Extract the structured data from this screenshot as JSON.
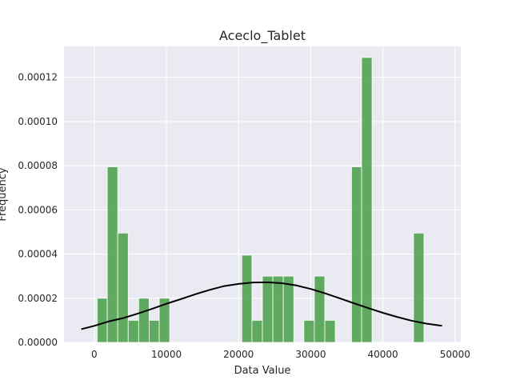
{
  "chart_data": {
    "type": "bar",
    "title": "Aceclo_Tablet",
    "xlabel": "Data Value",
    "ylabel": "Frequency",
    "xlim": [
      -4200,
      50800
    ],
    "ylim": [
      0,
      0.000134
    ],
    "xticks": [
      0,
      10000,
      20000,
      30000,
      40000,
      50000
    ],
    "yticks": [
      0,
      2e-05,
      4e-05,
      6e-05,
      8e-05,
      0.0001,
      0.00012
    ],
    "ytick_labels": [
      "0.00000",
      "0.00002",
      "0.00004",
      "0.00006",
      "0.00008",
      "0.00010",
      "0.00012"
    ],
    "grid": true,
    "bar_color": "#4c9f4c",
    "curve_color": "#000000",
    "background_color": "#eaeaf2",
    "bins": [
      {
        "x0": 400,
        "x1": 1800,
        "value": 2e-05
      },
      {
        "x0": 1800,
        "x1": 3250,
        "value": 7.95e-05
      },
      {
        "x0": 3250,
        "x1": 4700,
        "value": 4.95e-05
      },
      {
        "x0": 4700,
        "x1": 6150,
        "value": 1e-05
      },
      {
        "x0": 6150,
        "x1": 7600,
        "value": 2e-05
      },
      {
        "x0": 7600,
        "x1": 9000,
        "value": 1e-05
      },
      {
        "x0": 9000,
        "x1": 10450,
        "value": 2e-05
      },
      {
        "x0": 20450,
        "x1": 21850,
        "value": 3.95e-05
      },
      {
        "x0": 21850,
        "x1": 23300,
        "value": 1e-05
      },
      {
        "x0": 23300,
        "x1": 24750,
        "value": 3e-05
      },
      {
        "x0": 24750,
        "x1": 26200,
        "value": 3e-05
      },
      {
        "x0": 26200,
        "x1": 27650,
        "value": 3e-05
      },
      {
        "x0": 29050,
        "x1": 30500,
        "value": 1e-05
      },
      {
        "x0": 30500,
        "x1": 31950,
        "value": 3e-05
      },
      {
        "x0": 31950,
        "x1": 33400,
        "value": 1e-05
      },
      {
        "x0": 35650,
        "x1": 37050,
        "value": 7.95e-05
      },
      {
        "x0": 37050,
        "x1": 38500,
        "value": 0.000129
      },
      {
        "x0": 44250,
        "x1": 45700,
        "value": 4.95e-05
      }
    ],
    "curve": {
      "x": [
        -1800,
        0,
        2000,
        4000,
        6000,
        8000,
        10000,
        12000,
        14000,
        16000,
        18000,
        20000,
        22000,
        24000,
        26000,
        28000,
        30000,
        32000,
        34000,
        36000,
        38000,
        40000,
        42000,
        44000,
        46000,
        48200
      ],
      "y": [
        6e-06,
        7.5e-06,
        9.5e-06,
        1.1e-05,
        1.3e-05,
        1.52e-05,
        1.75e-05,
        1.96e-05,
        2.18e-05,
        2.38e-05,
        2.55e-05,
        2.65e-05,
        2.71e-05,
        2.72e-05,
        2.68e-05,
        2.58e-05,
        2.42e-05,
        2.22e-05,
        2e-05,
        1.77e-05,
        1.55e-05,
        1.34e-05,
        1.15e-05,
        9.8e-06,
        8.5e-06,
        7.5e-06
      ]
    }
  }
}
